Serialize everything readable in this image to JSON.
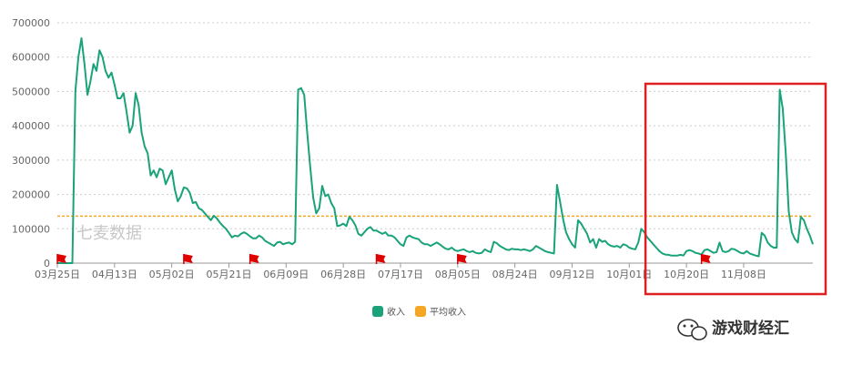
{
  "chart_data": {
    "type": "line",
    "title": "",
    "xlabel": "",
    "ylabel": "",
    "ylim": [
      0,
      700000
    ],
    "yticks": [
      "700000",
      "600000",
      "500000",
      "400000",
      "300000",
      "200000",
      "100000",
      "0"
    ],
    "xtick_labels": [
      "03月25日",
      "04月13日",
      "05月02日",
      "05月21日",
      "06月09日",
      "06月28日",
      "07月17日",
      "08月05日",
      "08月24日",
      "09月12日",
      "10月01日",
      "10月20日",
      "11月08日"
    ],
    "grid": true,
    "legend_position": "bottom-center",
    "series": [
      {
        "name": "收入",
        "color": "#1aa37a",
        "points": [
          [
            0,
            0
          ],
          [
            1,
            0
          ],
          [
            2,
            0
          ],
          [
            3,
            0
          ],
          [
            4,
            0
          ],
          [
            5,
            0
          ],
          [
            6,
            500000
          ],
          [
            7,
            600000
          ],
          [
            8,
            655000
          ],
          [
            9,
            580000
          ],
          [
            10,
            490000
          ],
          [
            11,
            530000
          ],
          [
            12,
            580000
          ],
          [
            13,
            560000
          ],
          [
            14,
            620000
          ],
          [
            15,
            600000
          ],
          [
            16,
            560000
          ],
          [
            17,
            540000
          ],
          [
            18,
            555000
          ],
          [
            19,
            520000
          ],
          [
            20,
            480000
          ],
          [
            21,
            480000
          ],
          [
            22,
            495000
          ],
          [
            23,
            440000
          ],
          [
            24,
            380000
          ],
          [
            25,
            400000
          ],
          [
            26,
            495000
          ],
          [
            27,
            460000
          ],
          [
            28,
            380000
          ],
          [
            29,
            340000
          ],
          [
            30,
            320000
          ],
          [
            31,
            255000
          ],
          [
            32,
            270000
          ],
          [
            33,
            250000
          ],
          [
            34,
            275000
          ],
          [
            35,
            270000
          ],
          [
            36,
            230000
          ],
          [
            37,
            250000
          ],
          [
            38,
            270000
          ],
          [
            39,
            215000
          ],
          [
            40,
            180000
          ],
          [
            41,
            195000
          ],
          [
            42,
            220000
          ],
          [
            43,
            218000
          ],
          [
            44,
            205000
          ],
          [
            45,
            175000
          ],
          [
            46,
            178000
          ],
          [
            47,
            160000
          ],
          [
            48,
            155000
          ],
          [
            49,
            145000
          ],
          [
            50,
            135000
          ],
          [
            51,
            125000
          ],
          [
            52,
            138000
          ],
          [
            53,
            130000
          ],
          [
            54,
            118000
          ],
          [
            55,
            108000
          ],
          [
            56,
            100000
          ],
          [
            57,
            88000
          ],
          [
            58,
            75000
          ],
          [
            59,
            80000
          ],
          [
            60,
            78000
          ],
          [
            61,
            85000
          ],
          [
            62,
            90000
          ],
          [
            63,
            85000
          ],
          [
            64,
            78000
          ],
          [
            65,
            72000
          ],
          [
            66,
            72000
          ],
          [
            67,
            80000
          ],
          [
            68,
            75000
          ],
          [
            69,
            65000
          ],
          [
            70,
            60000
          ],
          [
            71,
            55000
          ],
          [
            72,
            50000
          ],
          [
            73,
            60000
          ],
          [
            74,
            62000
          ],
          [
            75,
            55000
          ],
          [
            76,
            58000
          ],
          [
            77,
            60000
          ],
          [
            78,
            55000
          ],
          [
            79,
            62000
          ],
          [
            80,
            505000
          ],
          [
            81,
            510000
          ],
          [
            82,
            490000
          ],
          [
            83,
            380000
          ],
          [
            84,
            280000
          ],
          [
            85,
            190000
          ],
          [
            86,
            145000
          ],
          [
            87,
            160000
          ],
          [
            88,
            225000
          ],
          [
            89,
            195000
          ],
          [
            90,
            200000
          ],
          [
            91,
            175000
          ],
          [
            92,
            160000
          ],
          [
            93,
            108000
          ],
          [
            94,
            110000
          ],
          [
            95,
            115000
          ],
          [
            96,
            108000
          ],
          [
            97,
            135000
          ],
          [
            98,
            125000
          ],
          [
            99,
            110000
          ],
          [
            100,
            85000
          ],
          [
            101,
            80000
          ],
          [
            102,
            90000
          ],
          [
            103,
            100000
          ],
          [
            104,
            105000
          ],
          [
            105,
            95000
          ],
          [
            106,
            95000
          ],
          [
            107,
            90000
          ],
          [
            108,
            85000
          ],
          [
            109,
            90000
          ],
          [
            110,
            80000
          ],
          [
            111,
            80000
          ],
          [
            112,
            75000
          ],
          [
            113,
            65000
          ],
          [
            114,
            55000
          ],
          [
            115,
            50000
          ],
          [
            116,
            75000
          ],
          [
            117,
            80000
          ],
          [
            118,
            75000
          ],
          [
            119,
            72000
          ],
          [
            120,
            70000
          ],
          [
            121,
            60000
          ],
          [
            122,
            55000
          ],
          [
            123,
            55000
          ],
          [
            124,
            50000
          ],
          [
            125,
            55000
          ],
          [
            126,
            60000
          ],
          [
            127,
            55000
          ],
          [
            128,
            48000
          ],
          [
            129,
            42000
          ],
          [
            130,
            40000
          ],
          [
            131,
            45000
          ],
          [
            132,
            38000
          ],
          [
            133,
            35000
          ],
          [
            134,
            38000
          ],
          [
            135,
            40000
          ],
          [
            136,
            35000
          ],
          [
            137,
            32000
          ],
          [
            138,
            35000
          ],
          [
            139,
            30000
          ],
          [
            140,
            28000
          ],
          [
            141,
            30000
          ],
          [
            142,
            40000
          ],
          [
            143,
            35000
          ],
          [
            144,
            32000
          ],
          [
            145,
            62000
          ],
          [
            146,
            58000
          ],
          [
            147,
            50000
          ],
          [
            148,
            45000
          ],
          [
            149,
            40000
          ],
          [
            150,
            38000
          ],
          [
            151,
            42000
          ],
          [
            152,
            40000
          ],
          [
            153,
            40000
          ],
          [
            154,
            38000
          ],
          [
            155,
            40000
          ],
          [
            156,
            38000
          ],
          [
            157,
            35000
          ],
          [
            158,
            40000
          ],
          [
            159,
            50000
          ],
          [
            160,
            45000
          ],
          [
            161,
            40000
          ],
          [
            162,
            35000
          ],
          [
            163,
            32000
          ],
          [
            164,
            30000
          ],
          [
            165,
            28000
          ],
          [
            166,
            228000
          ],
          [
            167,
            180000
          ],
          [
            168,
            130000
          ],
          [
            169,
            90000
          ],
          [
            170,
            70000
          ],
          [
            171,
            55000
          ],
          [
            172,
            45000
          ],
          [
            173,
            125000
          ],
          [
            174,
            115000
          ],
          [
            175,
            100000
          ],
          [
            176,
            85000
          ],
          [
            177,
            60000
          ],
          [
            178,
            70000
          ],
          [
            179,
            45000
          ],
          [
            180,
            70000
          ],
          [
            181,
            62000
          ],
          [
            182,
            65000
          ],
          [
            183,
            55000
          ],
          [
            184,
            50000
          ],
          [
            185,
            48000
          ],
          [
            186,
            50000
          ],
          [
            187,
            45000
          ],
          [
            188,
            55000
          ],
          [
            189,
            52000
          ],
          [
            190,
            45000
          ],
          [
            191,
            42000
          ],
          [
            192,
            40000
          ],
          [
            193,
            60000
          ],
          [
            194,
            100000
          ],
          [
            195,
            90000
          ],
          [
            196,
            75000
          ],
          [
            197,
            65000
          ],
          [
            198,
            55000
          ],
          [
            199,
            45000
          ],
          [
            200,
            35000
          ],
          [
            201,
            28000
          ],
          [
            202,
            25000
          ],
          [
            203,
            24000
          ],
          [
            204,
            22000
          ],
          [
            205,
            22000
          ],
          [
            206,
            22000
          ],
          [
            207,
            24000
          ],
          [
            208,
            22000
          ],
          [
            209,
            35000
          ],
          [
            210,
            38000
          ],
          [
            211,
            35000
          ],
          [
            212,
            30000
          ],
          [
            213,
            28000
          ],
          [
            214,
            25000
          ],
          [
            215,
            38000
          ],
          [
            216,
            40000
          ],
          [
            217,
            35000
          ],
          [
            218,
            30000
          ],
          [
            219,
            32000
          ],
          [
            220,
            60000
          ],
          [
            221,
            35000
          ],
          [
            222,
            32000
          ],
          [
            223,
            35000
          ],
          [
            224,
            42000
          ],
          [
            225,
            40000
          ],
          [
            226,
            35000
          ],
          [
            227,
            30000
          ],
          [
            228,
            28000
          ],
          [
            229,
            35000
          ],
          [
            230,
            28000
          ],
          [
            231,
            25000
          ],
          [
            232,
            22000
          ],
          [
            233,
            20000
          ],
          [
            234,
            88000
          ],
          [
            235,
            80000
          ],
          [
            236,
            60000
          ],
          [
            237,
            50000
          ],
          [
            238,
            45000
          ],
          [
            239,
            45000
          ],
          [
            240,
            505000
          ],
          [
            241,
            450000
          ],
          [
            242,
            320000
          ],
          [
            243,
            150000
          ],
          [
            244,
            90000
          ],
          [
            245,
            70000
          ],
          [
            246,
            60000
          ],
          [
            247,
            135000
          ],
          [
            248,
            125000
          ],
          [
            249,
            100000
          ],
          [
            250,
            80000
          ],
          [
            251,
            55000
          ]
        ]
      },
      {
        "name": "平均收入",
        "color": "#f5a623",
        "value": 137000
      }
    ],
    "flags": [
      0,
      42,
      64,
      106,
      133,
      214
    ],
    "highlight_box": {
      "x_start": 196,
      "x_end": 251,
      "color": "#e02020"
    }
  },
  "watermark": "七麦数据",
  "legend": [
    {
      "label": "收入",
      "color": "#1aa37a"
    },
    {
      "label": "平均收入",
      "color": "#f5a623"
    }
  ],
  "brand": {
    "text": "游戏财经汇",
    "icon": "wechat-icon"
  }
}
